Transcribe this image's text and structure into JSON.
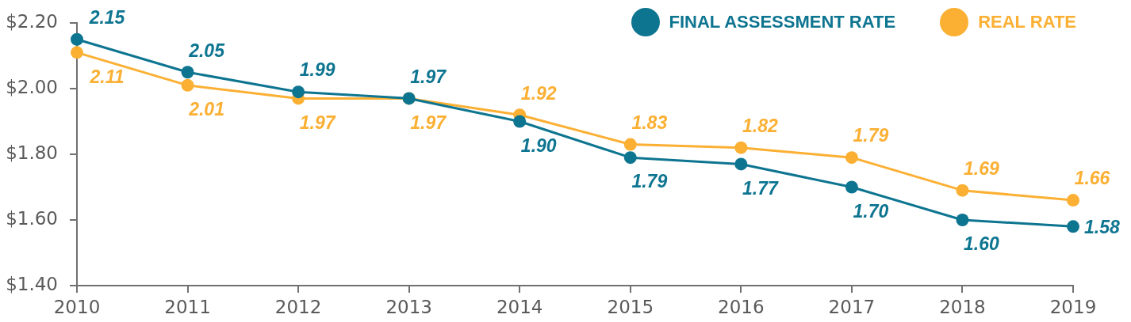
{
  "chart_data": {
    "type": "line",
    "categories": [
      "2010",
      "2011",
      "2012",
      "2013",
      "2014",
      "2015",
      "2016",
      "2017",
      "2018",
      "2019"
    ],
    "series": [
      {
        "name": "FINAL ASSESSMENT RATE",
        "color": "#0e7591",
        "values": [
          2.15,
          2.05,
          1.99,
          1.97,
          1.9,
          1.79,
          1.77,
          1.7,
          1.6,
          1.58
        ],
        "value_labels": [
          "2.15",
          "2.05",
          "1.99",
          "1.97",
          "1.90",
          "1.79",
          "1.77",
          "1.70",
          "1.60",
          "1.58"
        ]
      },
      {
        "name": "REAL RATE",
        "color": "#fbb034",
        "values": [
          2.11,
          2.01,
          1.97,
          1.97,
          1.92,
          1.83,
          1.82,
          1.79,
          1.69,
          1.66
        ],
        "value_labels": [
          "2.11",
          "2.01",
          "1.97",
          "1.97",
          "1.92",
          "1.83",
          "1.82",
          "1.79",
          "1.69",
          "1.66"
        ]
      }
    ],
    "ylim": [
      1.4,
      2.2
    ],
    "yticks": [
      {
        "value": 1.4,
        "label": "$1.40"
      },
      {
        "value": 1.6,
        "label": "$1.60"
      },
      {
        "value": 1.8,
        "label": "$1.80"
      },
      {
        "value": 2.0,
        "label": "$2.00"
      },
      {
        "value": 2.2,
        "label": "$2.20"
      }
    ],
    "grid": false,
    "legend": "top right",
    "marker": "circle",
    "line_style": "solid"
  }
}
